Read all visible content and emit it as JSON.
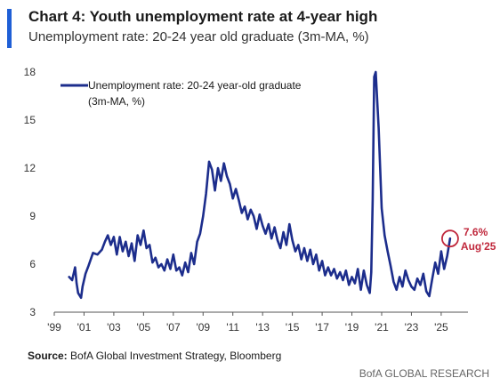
{
  "header": {
    "title": "Chart 4: Youth unemployment rate at 4-year high",
    "subtitle": "Unemployment rate: 20-24 year old graduate (3m-MA, %)"
  },
  "colors": {
    "accent": "#1f5fd6",
    "series": "#1c2d8c",
    "annotation": "#c0283c"
  },
  "chart_data": {
    "type": "line",
    "title": "Chart 4: Youth unemployment rate at 4-year high",
    "subtitle": "Unemployment rate: 20-24 year old graduate (3m-MA, %)",
    "xlabel": "",
    "ylabel": "",
    "xlim": [
      1999,
      2026.8
    ],
    "ylim": [
      3,
      18
    ],
    "y_ticks": [
      3,
      6,
      9,
      12,
      15,
      18
    ],
    "y_tick_labels": [
      "3",
      "6",
      "9",
      "12",
      "15",
      "18"
    ],
    "x_ticks": [
      1999,
      2001,
      2003,
      2005,
      2007,
      2009,
      2011,
      2013,
      2015,
      2017,
      2019,
      2021,
      2023,
      2025
    ],
    "x_tick_labels": [
      "'99",
      "'01",
      "'03",
      "'05",
      "'07",
      "'09",
      "'11",
      "'13",
      "'15",
      "'17",
      "'19",
      "'21",
      "'23",
      "'25"
    ],
    "grid": false,
    "legend": {
      "position": "top-left",
      "lines": [
        "Unemployment rate: 20-24 year-old graduate",
        "(3m-MA, %)"
      ]
    },
    "series": [
      {
        "name": "Unemployment rate: 20-24 year-old graduate (3m-MA, %)",
        "x": [
          2000.0,
          2000.2,
          2000.4,
          2000.5,
          2000.6,
          2000.8,
          2000.9,
          2001.1,
          2001.3,
          2001.6,
          2001.9,
          2002.2,
          2002.4,
          2002.6,
          2002.8,
          2003.0,
          2003.2,
          2003.4,
          2003.6,
          2003.8,
          2004.0,
          2004.2,
          2004.4,
          2004.6,
          2004.8,
          2005.0,
          2005.2,
          2005.4,
          2005.6,
          2005.8,
          2006.0,
          2006.2,
          2006.4,
          2006.6,
          2006.8,
          2007.0,
          2007.2,
          2007.4,
          2007.6,
          2007.8,
          2008.0,
          2008.2,
          2008.4,
          2008.6,
          2008.8,
          2009.0,
          2009.2,
          2009.4,
          2009.6,
          2009.8,
          2010.0,
          2010.2,
          2010.4,
          2010.6,
          2010.8,
          2011.0,
          2011.2,
          2011.4,
          2011.6,
          2011.8,
          2012.0,
          2012.2,
          2012.4,
          2012.6,
          2012.8,
          2013.0,
          2013.2,
          2013.4,
          2013.6,
          2013.8,
          2014.0,
          2014.2,
          2014.4,
          2014.6,
          2014.8,
          2015.0,
          2015.2,
          2015.4,
          2015.6,
          2015.8,
          2016.0,
          2016.2,
          2016.4,
          2016.6,
          2016.8,
          2017.0,
          2017.2,
          2017.4,
          2017.6,
          2017.8,
          2018.0,
          2018.2,
          2018.4,
          2018.6,
          2018.8,
          2019.0,
          2019.2,
          2019.4,
          2019.6,
          2019.8,
          2020.0,
          2020.2,
          2020.3,
          2020.4,
          2020.5,
          2020.6,
          2020.8,
          2020.9,
          2021.0,
          2021.2,
          2021.4,
          2021.6,
          2021.8,
          2022.0,
          2022.2,
          2022.4,
          2022.6,
          2022.8,
          2023.0,
          2023.2,
          2023.4,
          2023.6,
          2023.8,
          2024.0,
          2024.2,
          2024.4,
          2024.6,
          2024.8,
          2025.0,
          2025.2,
          2025.4,
          2025.6
        ],
        "values": [
          5.2,
          5.0,
          5.8,
          4.8,
          4.2,
          3.9,
          4.6,
          5.4,
          5.9,
          6.7,
          6.6,
          6.9,
          7.4,
          7.8,
          7.2,
          7.7,
          6.6,
          7.7,
          6.8,
          7.4,
          6.5,
          7.3,
          6.2,
          7.8,
          7.2,
          8.1,
          7.0,
          7.2,
          6.1,
          6.4,
          5.8,
          6.0,
          5.6,
          6.3,
          5.7,
          6.6,
          5.6,
          5.8,
          5.3,
          6.1,
          5.5,
          6.7,
          6.0,
          7.4,
          7.9,
          9.0,
          10.4,
          12.4,
          11.9,
          10.6,
          12.0,
          11.2,
          12.3,
          11.5,
          11.0,
          10.1,
          10.7,
          10.0,
          9.2,
          9.6,
          8.8,
          9.4,
          9.0,
          8.2,
          9.1,
          8.4,
          7.9,
          8.5,
          7.6,
          8.3,
          7.5,
          7.0,
          8.0,
          7.2,
          8.5,
          7.5,
          6.8,
          7.2,
          6.3,
          7.0,
          6.2,
          6.9,
          6.0,
          6.6,
          5.6,
          6.2,
          5.3,
          5.8,
          5.3,
          5.7,
          5.1,
          5.5,
          5.0,
          5.6,
          4.7,
          5.2,
          4.8,
          5.7,
          4.4,
          5.6,
          4.7,
          4.2,
          5.5,
          10.0,
          17.7,
          18.0,
          14.5,
          12.0,
          9.5,
          7.8,
          6.8,
          5.9,
          4.9,
          4.4,
          5.2,
          4.6,
          5.6,
          5.0,
          4.6,
          4.4,
          5.1,
          4.7,
          5.4,
          4.3,
          4.0,
          5.1,
          6.1,
          5.4,
          6.8,
          5.7,
          6.5,
          7.6
        ]
      }
    ],
    "annotations": [
      {
        "x": 2025.6,
        "y": 7.6,
        "value_label": "7.6%",
        "date_label": "Aug'25"
      }
    ]
  },
  "footer": {
    "source_label": "Source:",
    "source_text": " BofA Global Investment Strategy, Bloomberg",
    "brand": "BofA GLOBAL RESEARCH"
  }
}
